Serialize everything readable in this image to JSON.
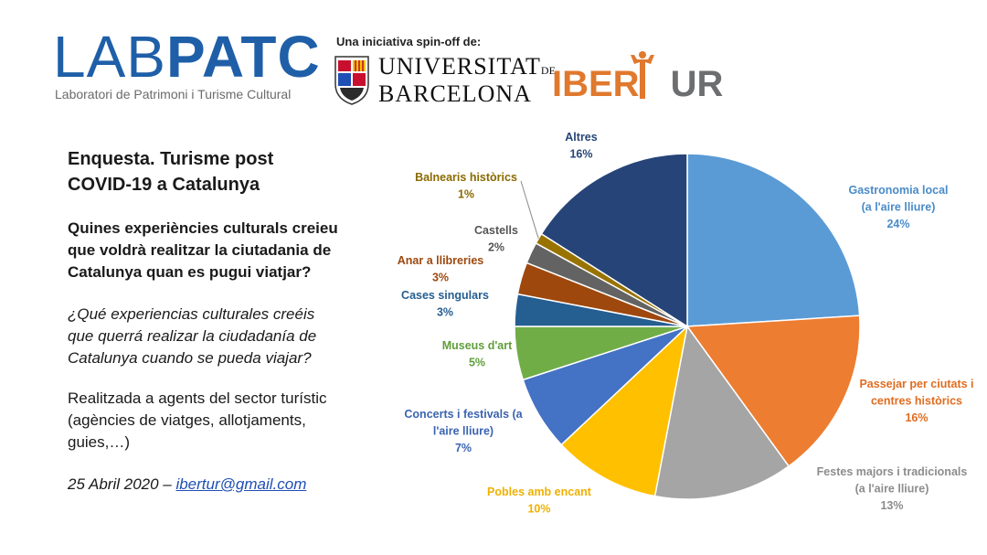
{
  "header": {
    "logo_lab": "LAB",
    "logo_patc": "PATC",
    "logo_subtitle": "Laboratori de Patrimoni i Turisme Cultural",
    "spinoff_text": "Una iniciativa spin-off de:",
    "ub_line1": "UNIVERSITAT",
    "ub_de": "DE",
    "ub_line2": "BARCELONA",
    "ibertur_left": "IBER",
    "ibertur_right": "UR"
  },
  "text": {
    "title": "Enquesta. Turisme post COVID-19 a Catalunya",
    "question_ca": "Quines experiències culturals creieu que voldrà realitzar la ciutadania de Catalunya quan es pugui viatjar?",
    "question_es": "¿Qué experiencias culturales creéis que querrá realizar la ciudadanía de Catalunya cuando se pueda viajar?",
    "note": "Realitzada a agents del sector turístic (agències de viatges, allotjaments, guies,…)",
    "date": "25 Abril 2020 – ",
    "email": "ibertur@gmail.com"
  },
  "chart_data": {
    "type": "pie",
    "title": "",
    "start": "12 o'clock",
    "direction": "clockwise",
    "slices": [
      {
        "label_lines": [
          "Gastronomia local",
          "(a l'aire lliure)"
        ],
        "pct_label": "24%",
        "value": 24,
        "color": "#5b9bd5",
        "label_color": "#4a8bc8"
      },
      {
        "label_lines": [
          "Passejar per ciutats i",
          "centres històrics"
        ],
        "pct_label": "16%",
        "value": 16,
        "color": "#ed7d31",
        "label_color": "#e06c1f"
      },
      {
        "label_lines": [
          "Festes majors i tradicionals",
          "(a l'aire lliure)"
        ],
        "pct_label": "13%",
        "value": 13,
        "color": "#a5a5a5",
        "label_color": "#8c8c8c"
      },
      {
        "label_lines": [
          "Pobles amb encant"
        ],
        "pct_label": "10%",
        "value": 10,
        "color": "#ffc000",
        "label_color": "#f0b000"
      },
      {
        "label_lines": [
          "Concerts i festivals (a",
          "l'aire lliure)"
        ],
        "pct_label": "7%",
        "value": 7,
        "color": "#4472c4",
        "label_color": "#3a64b0"
      },
      {
        "label_lines": [
          "Museus d'art"
        ],
        "pct_label": "5%",
        "value": 5,
        "color": "#70ad47",
        "label_color": "#5f9e39"
      },
      {
        "label_lines": [
          "Cases singulars"
        ],
        "pct_label": "3%",
        "value": 3,
        "color": "#255e91",
        "label_color": "#255e91"
      },
      {
        "label_lines": [
          "Anar a llibreries"
        ],
        "pct_label": "3%",
        "value": 3,
        "color": "#9e480e",
        "label_color": "#9e480e"
      },
      {
        "label_lines": [
          "Castells"
        ],
        "pct_label": "2%",
        "value": 2,
        "color": "#636363",
        "label_color": "#555555"
      },
      {
        "label_lines": [
          "Balnearis històrics"
        ],
        "pct_label": "1%",
        "value": 1,
        "color": "#997300",
        "label_color": "#8a6a00"
      },
      {
        "label_lines": [
          "Altres"
        ],
        "pct_label": "16%",
        "value": 16,
        "color": "#264478",
        "label_color": "#264478"
      }
    ]
  }
}
